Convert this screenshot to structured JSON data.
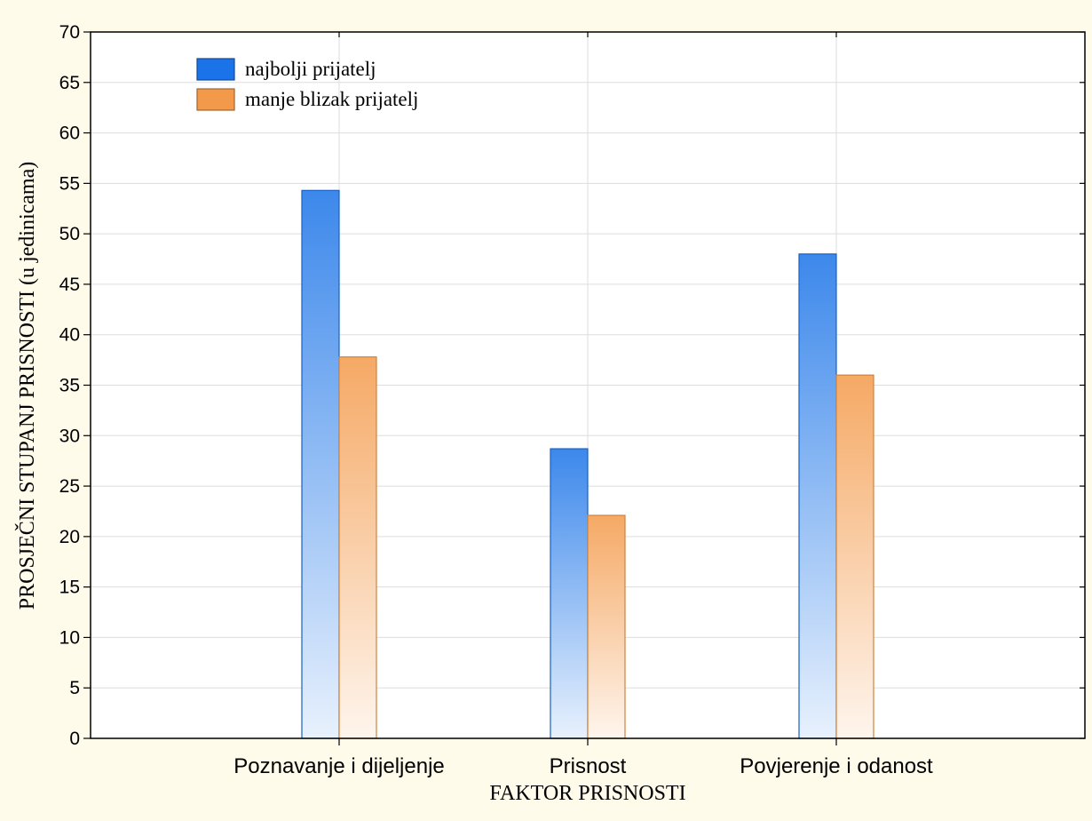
{
  "chart_data": {
    "type": "bar",
    "categories": [
      "Poznavanje i dijeljenje",
      "Prisnost",
      "Povjerenje i odanost"
    ],
    "series": [
      {
        "name": "najbolji prijatelj",
        "values": [
          54.3,
          28.7,
          48.0
        ],
        "color": "#1a73e8"
      },
      {
        "name": "manje blizak prijatelj",
        "values": [
          37.8,
          22.1,
          36.0
        ],
        "color": "#f39a4a"
      }
    ],
    "xlabel": "FAKTOR PRISNOSTI",
    "ylabel": "PROSJEČNI STUPANJ PRISNOSTI (u jedinicama)",
    "ylim": [
      0,
      70
    ],
    "yticks": [
      0,
      5,
      10,
      15,
      20,
      25,
      30,
      35,
      40,
      45,
      50,
      55,
      60,
      65,
      70
    ],
    "grid": true,
    "legend_position": "top-left",
    "background_color": "#fffbeb"
  }
}
